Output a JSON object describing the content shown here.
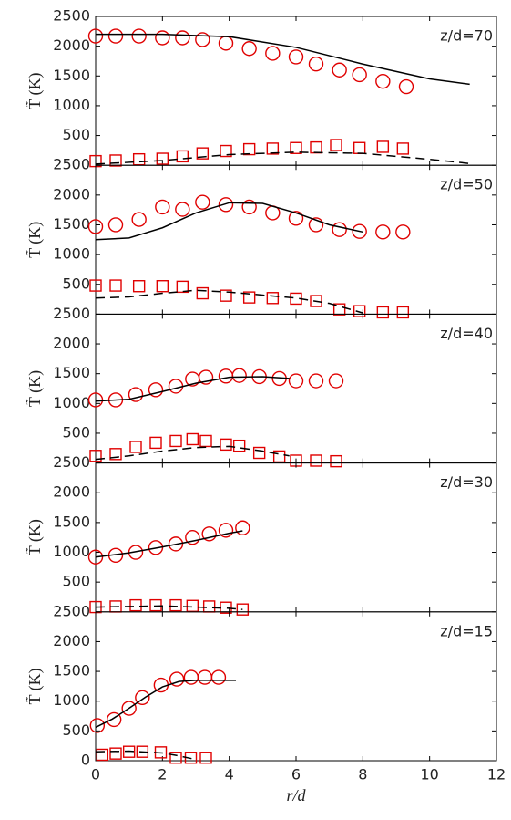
{
  "chart_data": [
    {
      "type": "line",
      "annotation": "z/d=70",
      "ylabel": "T̃ (K)",
      "xlim": [
        0,
        12
      ],
      "xticks": [
        0,
        2,
        4,
        6,
        8,
        10,
        12
      ],
      "ylim": [
        0,
        2500
      ],
      "yticks": [
        500,
        1000,
        1500,
        2000,
        2500
      ],
      "series": [
        {
          "color": "#e00000",
          "marker": "circle",
          "x": [
            0,
            0.6,
            1.3,
            2,
            2.6,
            3.2,
            3.9,
            4.6,
            5.3,
            6,
            6.6,
            7.3,
            7.9,
            8.6,
            9.3
          ],
          "values": [
            2170,
            2170,
            2170,
            2140,
            2140,
            2110,
            2050,
            1960,
            1880,
            1820,
            1700,
            1600,
            1520,
            1410,
            1320
          ]
        },
        {
          "color": "#e00000",
          "marker": "square",
          "x": [
            0,
            0.6,
            1.3,
            2,
            2.6,
            3.2,
            3.9,
            4.6,
            5.3,
            6,
            6.6,
            7.2,
            7.9,
            8.6,
            9.2
          ],
          "values": [
            70,
            80,
            100,
            110,
            150,
            200,
            240,
            270,
            280,
            290,
            300,
            340,
            290,
            310,
            280
          ]
        },
        {
          "color": "#000000",
          "line": "solid",
          "x": [
            0,
            2,
            4,
            6,
            8,
            10,
            11.2
          ],
          "values": [
            2200,
            2200,
            2160,
            1980,
            1700,
            1450,
            1360
          ]
        },
        {
          "color": "#000000",
          "line": "dashed",
          "x": [
            0,
            2,
            4,
            6,
            8,
            10,
            11.2
          ],
          "values": [
            20,
            80,
            180,
            220,
            200,
            100,
            30
          ]
        }
      ]
    },
    {
      "type": "line",
      "annotation": "z/d=50",
      "ylabel": "T̃ (K)",
      "xlim": [
        0,
        12
      ],
      "xticks": [
        0,
        2,
        4,
        6,
        8,
        10,
        12
      ],
      "ylim": [
        0,
        2500
      ],
      "yticks": [
        500,
        1000,
        1500,
        2000,
        2500
      ],
      "series": [
        {
          "color": "#e00000",
          "marker": "circle",
          "x": [
            0,
            0.6,
            1.3,
            2,
            2.6,
            3.2,
            3.9,
            4.6,
            5.3,
            6,
            6.6,
            7.3,
            7.9,
            8.6,
            9.2
          ],
          "values": [
            1470,
            1500,
            1590,
            1800,
            1760,
            1880,
            1840,
            1800,
            1700,
            1610,
            1500,
            1420,
            1390,
            1380,
            1380
          ]
        },
        {
          "color": "#e00000",
          "marker": "square",
          "x": [
            0,
            0.6,
            1.3,
            2,
            2.6,
            3.2,
            3.9,
            4.6,
            5.3,
            6,
            6.6,
            7.3,
            7.9,
            8.6,
            9.2
          ],
          "values": [
            480,
            480,
            470,
            470,
            460,
            350,
            310,
            280,
            270,
            260,
            220,
            80,
            50,
            30,
            30
          ]
        },
        {
          "color": "#000000",
          "line": "solid",
          "x": [
            0,
            1,
            2,
            3,
            4,
            5,
            6,
            7,
            8
          ],
          "values": [
            1250,
            1280,
            1450,
            1700,
            1870,
            1860,
            1700,
            1500,
            1380
          ]
        },
        {
          "color": "#000000",
          "line": "dashed",
          "x": [
            0,
            1,
            2,
            3,
            4,
            5,
            6,
            7,
            8
          ],
          "values": [
            270,
            290,
            350,
            400,
            370,
            320,
            270,
            180,
            20
          ]
        }
      ]
    },
    {
      "type": "line",
      "annotation": "z/d=40",
      "ylabel": "T̃ (K)",
      "xlim": [
        0,
        12
      ],
      "xticks": [
        0,
        2,
        4,
        6,
        8,
        10,
        12
      ],
      "ylim": [
        0,
        2500
      ],
      "yticks": [
        500,
        1000,
        1500,
        2000,
        2500
      ],
      "series": [
        {
          "color": "#e00000",
          "marker": "circle",
          "x": [
            0,
            0.6,
            1.2,
            1.8,
            2.4,
            2.9,
            3.3,
            3.9,
            4.3,
            4.9,
            5.5,
            6,
            6.6,
            7.2
          ],
          "values": [
            1060,
            1060,
            1150,
            1230,
            1290,
            1410,
            1440,
            1460,
            1470,
            1450,
            1420,
            1380,
            1380,
            1380
          ]
        },
        {
          "color": "#e00000",
          "marker": "square",
          "x": [
            0,
            0.6,
            1.2,
            1.8,
            2.4,
            2.9,
            3.3,
            3.9,
            4.3,
            4.9,
            5.5,
            6,
            6.6,
            7.2
          ],
          "values": [
            120,
            150,
            270,
            340,
            370,
            400,
            370,
            310,
            290,
            170,
            110,
            40,
            40,
            30
          ]
        },
        {
          "color": "#000000",
          "line": "solid",
          "x": [
            0,
            1,
            2,
            3,
            4,
            5,
            5.8
          ],
          "values": [
            1040,
            1070,
            1200,
            1340,
            1440,
            1450,
            1420
          ]
        },
        {
          "color": "#000000",
          "line": "dashed",
          "x": [
            0,
            1,
            2,
            3,
            4,
            5,
            5.8
          ],
          "values": [
            60,
            120,
            200,
            260,
            280,
            200,
            120
          ]
        }
      ]
    },
    {
      "type": "line",
      "annotation": "z/d=30",
      "ylabel": "T̃ (K)",
      "xlim": [
        0,
        12
      ],
      "xticks": [
        0,
        2,
        4,
        6,
        8,
        10,
        12
      ],
      "ylim": [
        0,
        2500
      ],
      "yticks": [
        500,
        1000,
        1500,
        2000,
        2500
      ],
      "series": [
        {
          "color": "#e00000",
          "marker": "circle",
          "x": [
            0,
            0.6,
            1.2,
            1.8,
            2.4,
            2.9,
            3.4,
            3.9,
            4.4
          ],
          "values": [
            920,
            950,
            1000,
            1080,
            1140,
            1250,
            1310,
            1370,
            1410
          ]
        },
        {
          "color": "#e00000",
          "marker": "square",
          "x": [
            0,
            0.6,
            1.2,
            1.8,
            2.4,
            2.9,
            3.4,
            3.9,
            4.4
          ],
          "values": [
            80,
            90,
            110,
            110,
            110,
            100,
            90,
            70,
            40
          ]
        },
        {
          "color": "#000000",
          "line": "solid",
          "x": [
            0,
            1,
            2,
            3,
            4,
            4.4
          ],
          "values": [
            920,
            990,
            1090,
            1200,
            1320,
            1360
          ]
        },
        {
          "color": "#000000",
          "line": "dashed",
          "x": [
            0,
            2,
            4,
            4.4
          ],
          "values": [
            80,
            100,
            60,
            40
          ]
        }
      ]
    },
    {
      "type": "line",
      "annotation": "z/d=15",
      "ylabel": "T̃ (K)",
      "xlabel": "r/d",
      "xlim": [
        0,
        12
      ],
      "xticks": [
        0,
        2,
        4,
        6,
        8,
        10,
        12
      ],
      "ylim": [
        0,
        2500
      ],
      "yticks": [
        0,
        500,
        1000,
        1500,
        2000,
        2500
      ],
      "series": [
        {
          "color": "#e00000",
          "marker": "circle",
          "x": [
            0.05,
            0.55,
            1,
            1.4,
            1.96,
            2.43,
            2.86,
            3.27,
            3.68
          ],
          "values": [
            590,
            690,
            880,
            1060,
            1270,
            1370,
            1400,
            1400,
            1400
          ]
        },
        {
          "color": "#e00000",
          "marker": "square",
          "x": [
            0.2,
            0.6,
            1,
            1.4,
            1.95,
            2.4,
            2.85,
            3.3
          ],
          "values": [
            100,
            120,
            150,
            150,
            140,
            50,
            50,
            50
          ]
        },
        {
          "color": "#000000",
          "line": "solid",
          "x": [
            0,
            0.5,
            1,
            1.5,
            2,
            2.5,
            3,
            4.2
          ],
          "values": [
            560,
            700,
            880,
            1070,
            1240,
            1330,
            1350,
            1350
          ]
        },
        {
          "color": "#000000",
          "line": "dashed",
          "x": [
            0,
            1,
            2,
            2.5,
            3
          ],
          "values": [
            150,
            160,
            130,
            80,
            20
          ]
        }
      ]
    }
  ]
}
